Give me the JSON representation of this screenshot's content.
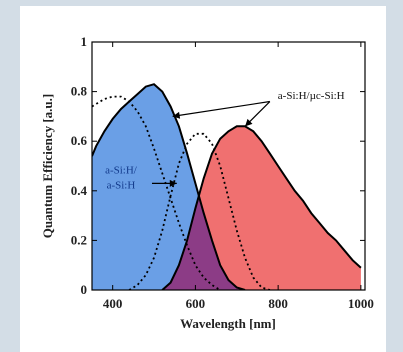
{
  "chart_data": {
    "type": "area",
    "xlabel": "Wavelength  [nm]",
    "ylabel": "Quantum Efficiency [a.u.]",
    "xlim": [
      350,
      1010
    ],
    "ylim": [
      0,
      1
    ],
    "x_ticks": [
      400,
      600,
      800,
      1000
    ],
    "y_ticks": [
      0,
      0.2,
      0.4,
      0.6,
      0.8,
      1
    ],
    "x_tick_labels": [
      "400",
      "600",
      "800",
      "1000"
    ],
    "y_tick_labels": [
      "0",
      "0.2",
      "0.4",
      "0.6",
      "0.8",
      "1"
    ],
    "grid": false,
    "colors": {
      "top_cell": "#6a9fe6",
      "bottom_cell": "#f07070",
      "overlap": "#8c3c86",
      "outline": "#000000"
    },
    "series": [
      {
        "fill": "blue",
        "x": [
          350,
          360,
          380,
          400,
          420,
          440,
          460,
          480,
          500,
          520,
          540,
          560,
          580,
          600,
          620,
          640,
          660,
          680,
          700,
          720
        ],
        "values": [
          0.54,
          0.58,
          0.64,
          0.69,
          0.73,
          0.76,
          0.79,
          0.82,
          0.83,
          0.8,
          0.74,
          0.66,
          0.55,
          0.43,
          0.31,
          0.2,
          0.1,
          0.04,
          0.01,
          0.0
        ]
      },
      {
        "fill": "red",
        "x": [
          520,
          540,
          560,
          580,
          600,
          620,
          640,
          660,
          680,
          700,
          720,
          740,
          760,
          780,
          800,
          820,
          840,
          860,
          880,
          900,
          920,
          940,
          960,
          980,
          1000
        ],
        "values": [
          0.0,
          0.03,
          0.1,
          0.2,
          0.33,
          0.45,
          0.55,
          0.61,
          0.64,
          0.66,
          0.66,
          0.64,
          0.6,
          0.55,
          0.5,
          0.45,
          0.4,
          0.36,
          0.31,
          0.27,
          0.23,
          0.2,
          0.16,
          0.12,
          0.09
        ]
      },
      {
        "style": "dotted",
        "x": [
          350,
          380,
          400,
          420,
          440,
          460,
          480,
          500,
          520,
          540,
          560,
          580,
          600,
          620,
          640,
          660
        ],
        "values": [
          0.74,
          0.77,
          0.78,
          0.78,
          0.76,
          0.72,
          0.66,
          0.57,
          0.47,
          0.37,
          0.27,
          0.18,
          0.1,
          0.05,
          0.02,
          0.0
        ]
      },
      {
        "style": "dotted",
        "x": [
          440,
          460,
          480,
          500,
          520,
          540,
          560,
          580,
          600,
          620,
          640,
          660,
          680,
          700,
          720,
          740,
          760,
          780
        ],
        "values": [
          0.0,
          0.02,
          0.06,
          0.13,
          0.24,
          0.38,
          0.51,
          0.59,
          0.63,
          0.63,
          0.59,
          0.5,
          0.37,
          0.24,
          0.13,
          0.05,
          0.01,
          0.0
        ]
      }
    ],
    "annotations": [
      {
        "text": "a-Si:H/µc-Si:H",
        "x": 880,
        "y": 0.77
      },
      {
        "text": "a-Si:H/",
        "x": 420,
        "y": 0.47
      },
      {
        "text": "a-Si:H",
        "x": 420,
        "y": 0.41
      }
    ]
  }
}
